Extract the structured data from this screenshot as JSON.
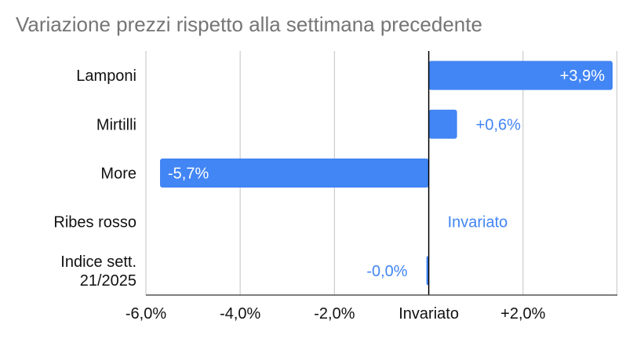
{
  "chart_data": {
    "type": "bar",
    "orientation": "horizontal",
    "title": "Variazione prezzi rispetto alla settimana precedente",
    "categories": [
      "Lamponi",
      "Mirtilli",
      "More",
      "Ribes rosso",
      "Indice sett. 21/2025"
    ],
    "values": [
      3.9,
      0.6,
      -5.7,
      0.0,
      -0.02
    ],
    "data_labels": [
      "+3,9%",
      "+0,6%",
      "-5,7%",
      "Invariato",
      "-0,0%"
    ],
    "xlim": [
      -6.0,
      4.0
    ],
    "x_ticks": [
      {
        "value": -6,
        "label": "-6,0%"
      },
      {
        "value": -4,
        "label": "-4,0%"
      },
      {
        "value": -2,
        "label": "-2,0%"
      },
      {
        "value": 0,
        "label": "Invariato"
      },
      {
        "value": 2,
        "label": "+2,0%"
      }
    ],
    "grid": true,
    "legend": "none",
    "colors": {
      "bar": "#4285f4",
      "label_inside": "#ffffff",
      "label_outside": "#4285f4",
      "title": "#757575",
      "grid": "#cccccc",
      "zero_line": "#000000"
    }
  }
}
